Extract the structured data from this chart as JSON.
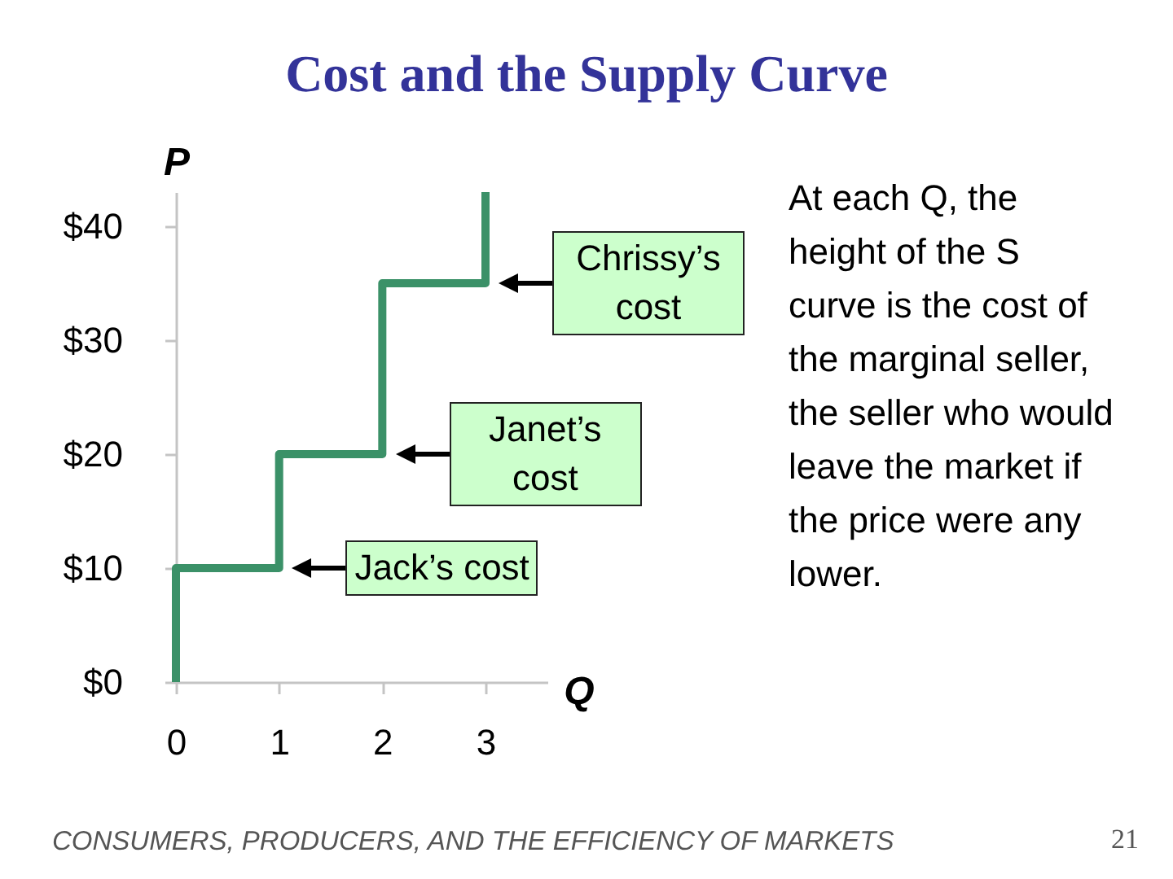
{
  "chart_data": {
    "type": "line",
    "title": "Cost and the Supply Curve",
    "xlabel": "Q",
    "ylabel": "P",
    "x": [
      0,
      0,
      1,
      1,
      2,
      2,
      3,
      3
    ],
    "values": [
      0,
      10,
      10,
      20,
      20,
      35,
      35,
      43
    ],
    "color": "#3b9168",
    "xlim": [
      0,
      3.6
    ],
    "ylim": [
      0,
      43
    ],
    "xticks": [
      0,
      1,
      2,
      3
    ],
    "yticks": [
      {
        "value": 0,
        "label": "$0"
      },
      {
        "value": 10,
        "label": "$10"
      },
      {
        "value": 20,
        "label": "$20"
      },
      {
        "value": 30,
        "label": "$30"
      },
      {
        "value": 40,
        "label": "$40"
      }
    ],
    "annotations": [
      {
        "text": "Jack’s cost",
        "x": 1,
        "y": 10
      },
      {
        "text": "Janet’s cost",
        "x": 2,
        "y": 20
      },
      {
        "text": "Chrissy’s cost",
        "x": 3,
        "y": 35
      },
      "At each Q, the height of the S curve is the cost of the marginal seller, the seller who would leave the market if the price were any lower.",
      "CONSUMERS, PRODUCERS, AND THE EFFICIENCY OF MARKETS",
      "21"
    ]
  }
}
